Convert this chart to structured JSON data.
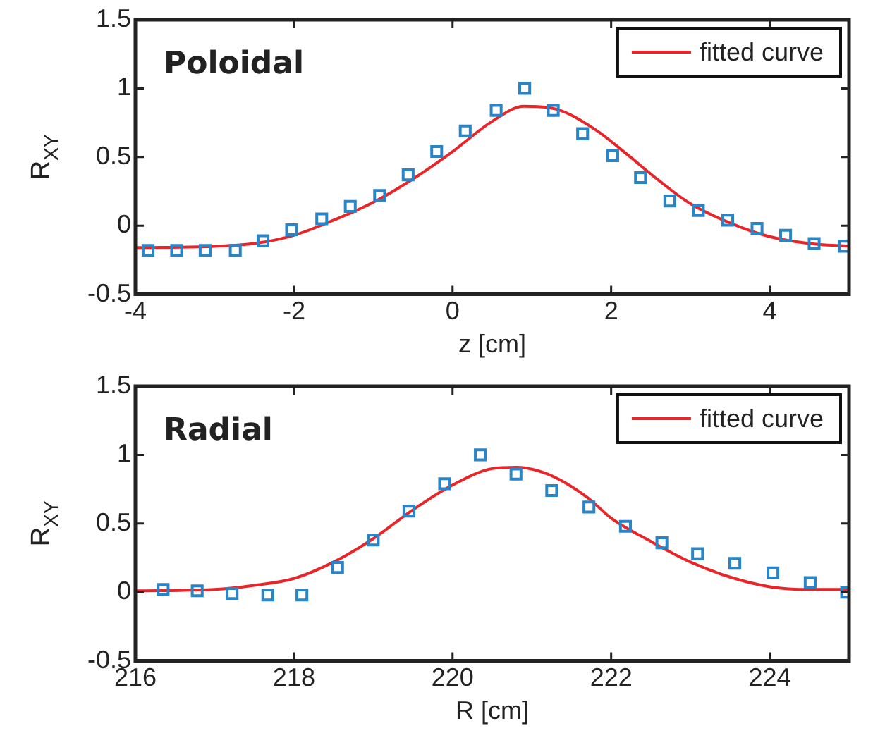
{
  "chart_data": [
    {
      "type": "scatter",
      "title": "Poloidal",
      "xlabel": "z [cm]",
      "ylabel": "R$_{XY}$",
      "xlim": [
        -4,
        5
      ],
      "xticks": [
        -4,
        -2,
        0,
        2,
        4
      ],
      "ylim": [
        -0.5,
        1.5
      ],
      "yticks": [
        -0.5,
        0,
        0.5,
        1,
        1.5
      ],
      "grid": false,
      "legend": "top right",
      "series": [
        {
          "type": "scatter",
          "marker": "square",
          "color": "#2a85c8",
          "x": [
            -3.84,
            -3.48,
            -3.12,
            -2.74,
            -2.39,
            -2.03,
            -1.65,
            -1.29,
            -0.92,
            -0.56,
            -0.2,
            0.16,
            0.55,
            0.91,
            1.27,
            1.64,
            2.02,
            2.37,
            2.74,
            3.1,
            3.47,
            3.84,
            4.2,
            4.56,
            4.94
          ],
          "values": [
            -0.18,
            -0.18,
            -0.18,
            -0.18,
            -0.11,
            -0.03,
            0.05,
            0.14,
            0.22,
            0.37,
            0.54,
            0.69,
            0.84,
            1.0,
            0.84,
            0.67,
            0.51,
            0.35,
            0.18,
            0.11,
            0.04,
            -0.02,
            -0.07,
            -0.13,
            -0.15
          ]
        },
        {
          "type": "line",
          "name": "fitted curve",
          "color": "#e8262a",
          "marker": "none",
          "line_style": "solid",
          "x": [
            -4,
            -3,
            -2.5,
            -2,
            -1.5,
            -1,
            -0.5,
            0,
            0.5,
            0.9,
            1.3,
            1.8,
            2.2,
            2.6,
            3,
            3.5,
            4,
            4.5,
            5
          ],
          "values": [
            -0.16,
            -0.15,
            -0.13,
            -0.07,
            0.04,
            0.17,
            0.34,
            0.54,
            0.76,
            0.87,
            0.85,
            0.7,
            0.52,
            0.33,
            0.16,
            0.02,
            -0.08,
            -0.13,
            -0.15
          ]
        }
      ]
    },
    {
      "type": "scatter",
      "title": "Radial",
      "xlabel": "R [cm]",
      "ylabel": "R$_{XY}$",
      "xlim": [
        216,
        225
      ],
      "xticks": [
        216,
        218,
        220,
        222,
        224
      ],
      "ylim": [
        -0.5,
        1.5
      ],
      "yticks": [
        -0.5,
        0,
        0.5,
        1,
        1.5
      ],
      "grid": false,
      "legend": "top right",
      "series": [
        {
          "type": "scatter",
          "marker": "square",
          "color": "#2a85c8",
          "x": [
            216.35,
            216.78,
            217.22,
            217.67,
            218.1,
            218.55,
            219.0,
            219.45,
            219.9,
            220.35,
            220.8,
            221.25,
            221.72,
            222.18,
            222.64,
            223.09,
            223.56,
            224.04,
            224.51,
            224.97
          ],
          "values": [
            0.02,
            0.01,
            -0.01,
            -0.02,
            -0.02,
            0.18,
            0.38,
            0.59,
            0.79,
            1.0,
            0.86,
            0.74,
            0.62,
            0.48,
            0.36,
            0.28,
            0.21,
            0.14,
            0.07,
            0.0
          ]
        },
        {
          "type": "line",
          "name": "fitted curve",
          "color": "#e8262a",
          "marker": "none",
          "line_style": "solid",
          "x": [
            216,
            217,
            217.5,
            218,
            218.5,
            219,
            219.5,
            220,
            220.5,
            220.8,
            221.2,
            221.7,
            222,
            222.5,
            223,
            223.5,
            224,
            224.5,
            225
          ],
          "values": [
            0.01,
            0.02,
            0.05,
            0.1,
            0.22,
            0.39,
            0.6,
            0.78,
            0.9,
            0.91,
            0.86,
            0.69,
            0.54,
            0.37,
            0.22,
            0.11,
            0.04,
            0.02,
            0.02
          ]
        }
      ]
    }
  ]
}
